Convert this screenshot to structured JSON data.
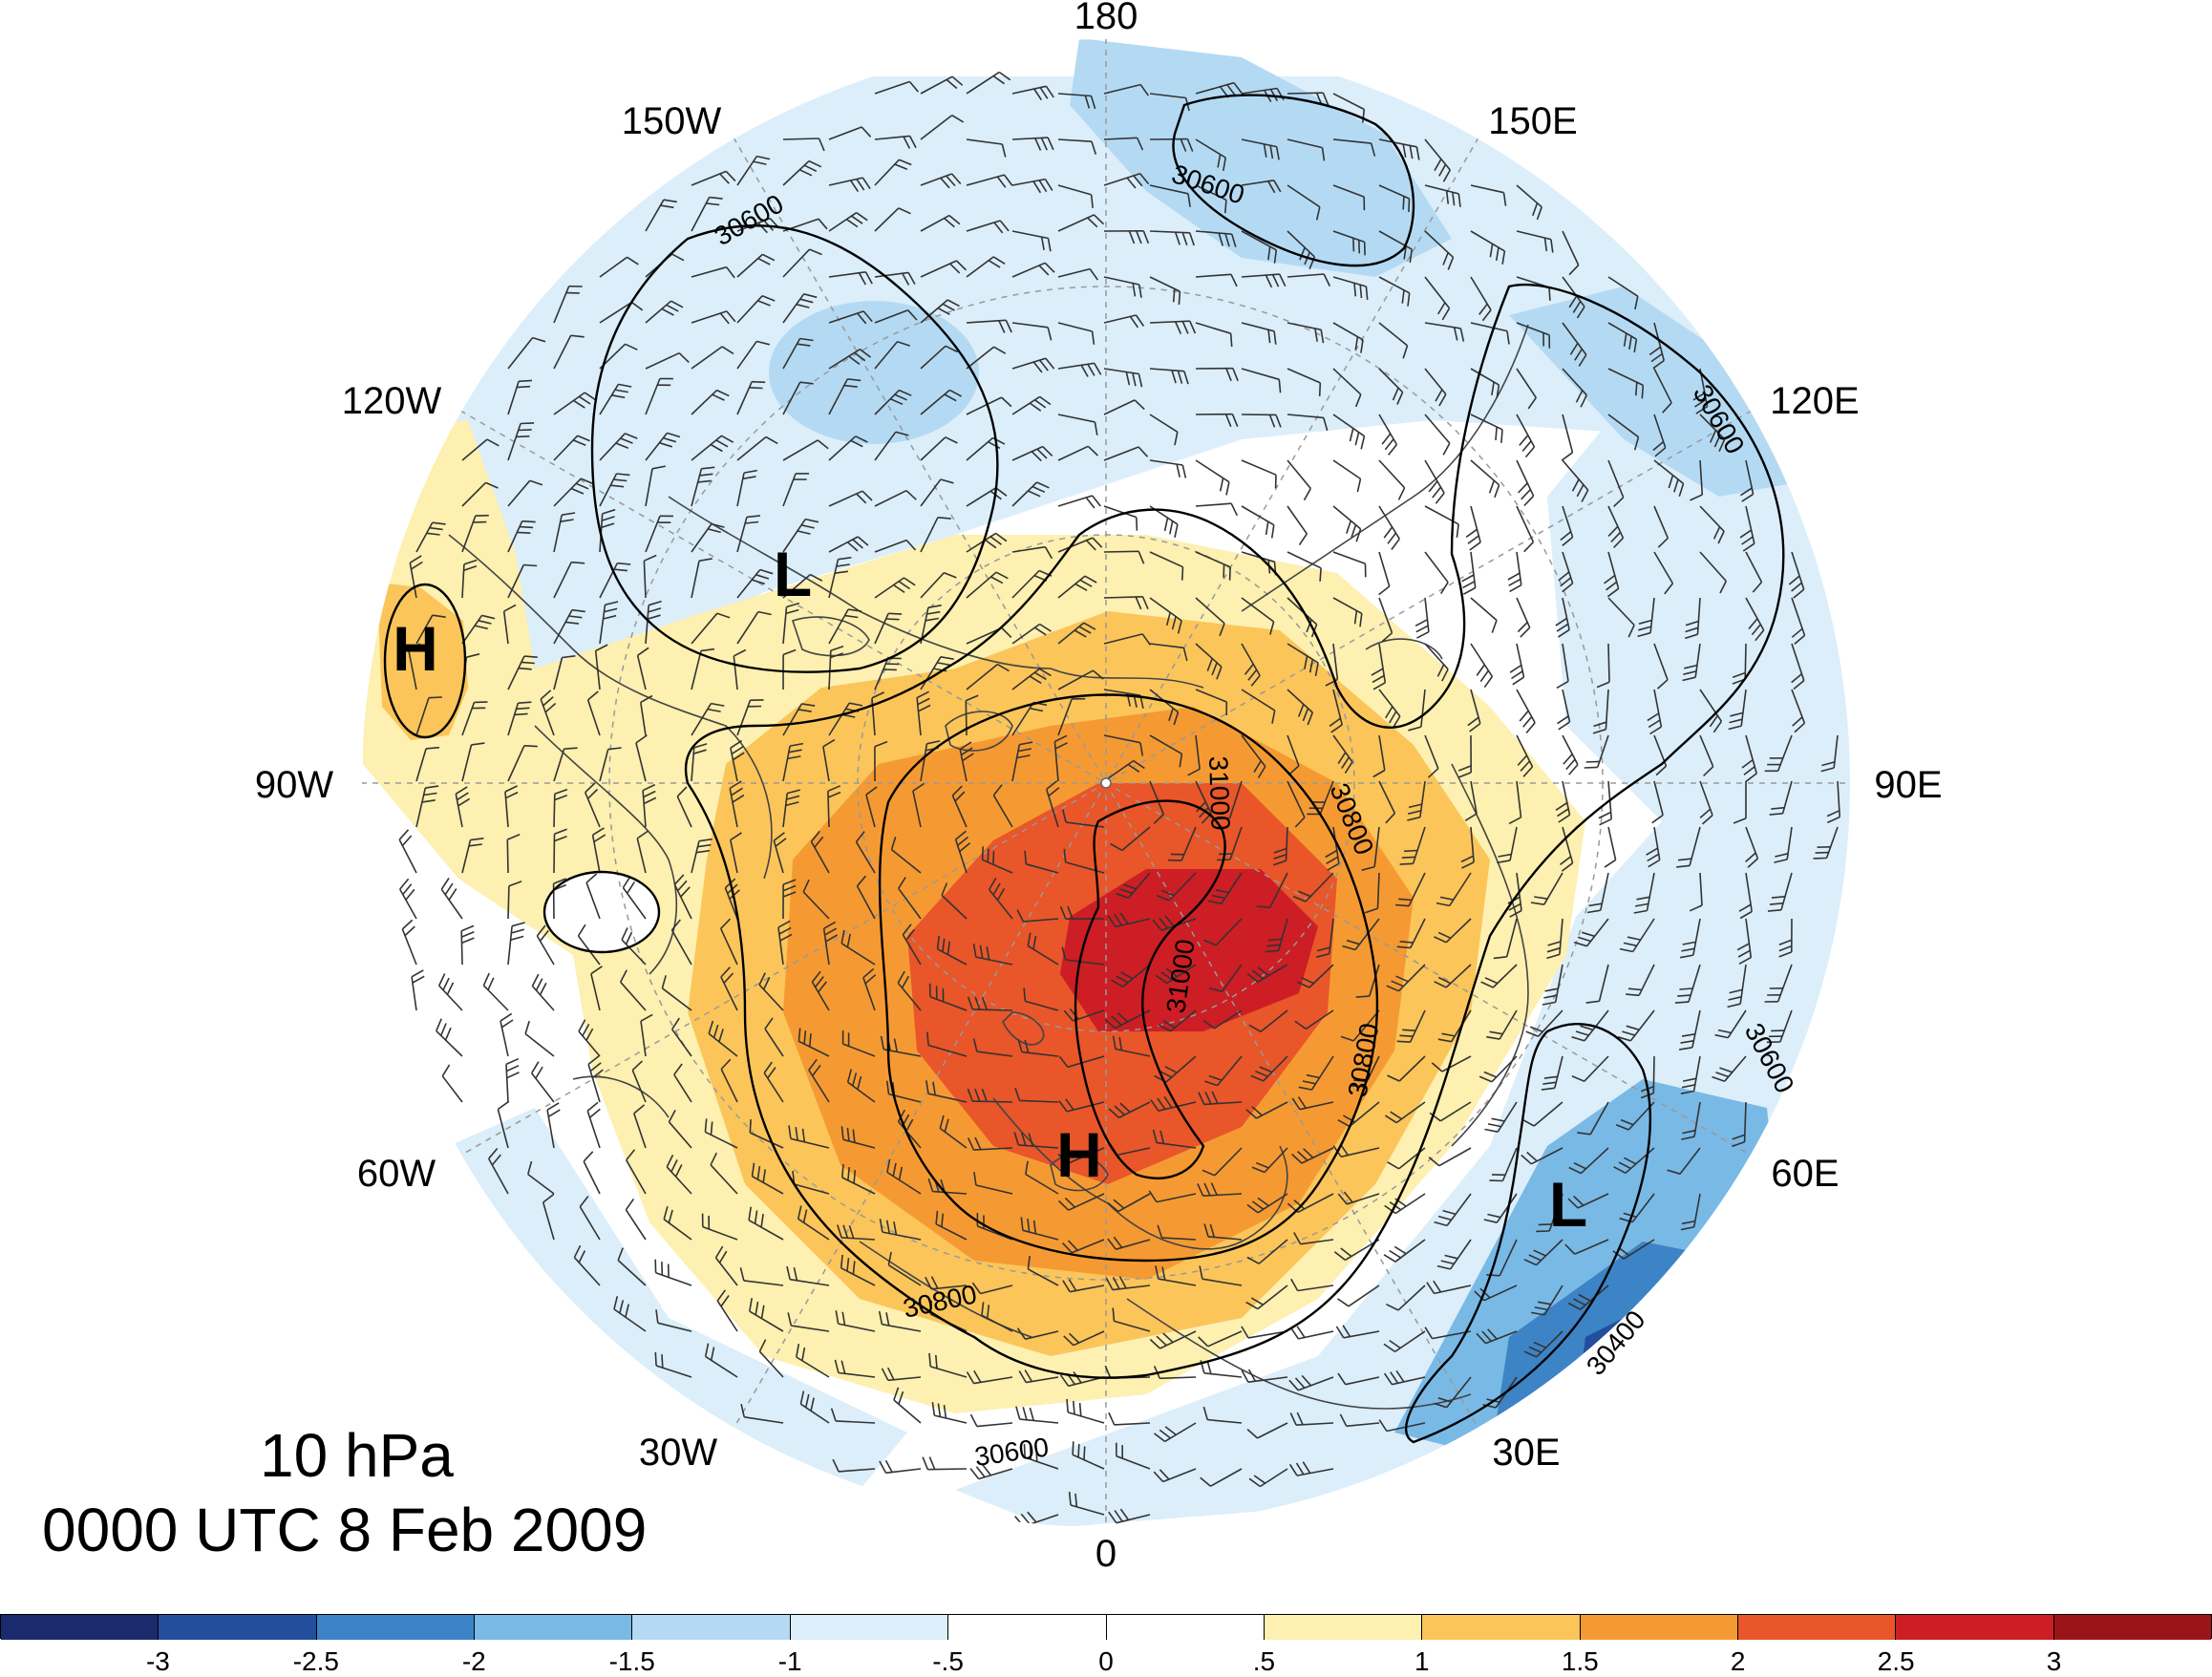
{
  "title": {
    "level": "10 hPa",
    "time": "0000 UTC 8 Feb 2009"
  },
  "longitude_labels": [
    "180",
    "150E",
    "120E",
    "90E",
    "60E",
    "30E",
    "0",
    "30W",
    "60W",
    "90W",
    "120W",
    "150W"
  ],
  "pressure_centers": [
    {
      "label": "H",
      "region": "western North America"
    },
    {
      "label": "L",
      "region": "Alaska / Bering"
    },
    {
      "label": "H",
      "region": "Scandinavia / Arctic"
    },
    {
      "label": "L",
      "region": "central Asia"
    }
  ],
  "contour_labels": [
    "30600",
    "30600",
    "30600",
    "30600",
    "30600",
    "30800",
    "30800",
    "30800",
    "31000",
    "31000",
    "30400"
  ],
  "colorbar": {
    "colors": [
      "#1a2a6c",
      "#234e9c",
      "#3c84c6",
      "#79b9e6",
      "#b4daf3",
      "#dbeefa",
      "#ffffff",
      "#ffffff",
      "#fdf0b0",
      "#fbc55a",
      "#f59a32",
      "#e8562a",
      "#cc1e24",
      "#9b1418"
    ],
    "labels": [
      "-3",
      "-2.5",
      "-2",
      "-1.5",
      "-1",
      "-.5",
      "0",
      ".5",
      "1",
      "1.5",
      "2",
      "2.5",
      "3"
    ]
  }
}
